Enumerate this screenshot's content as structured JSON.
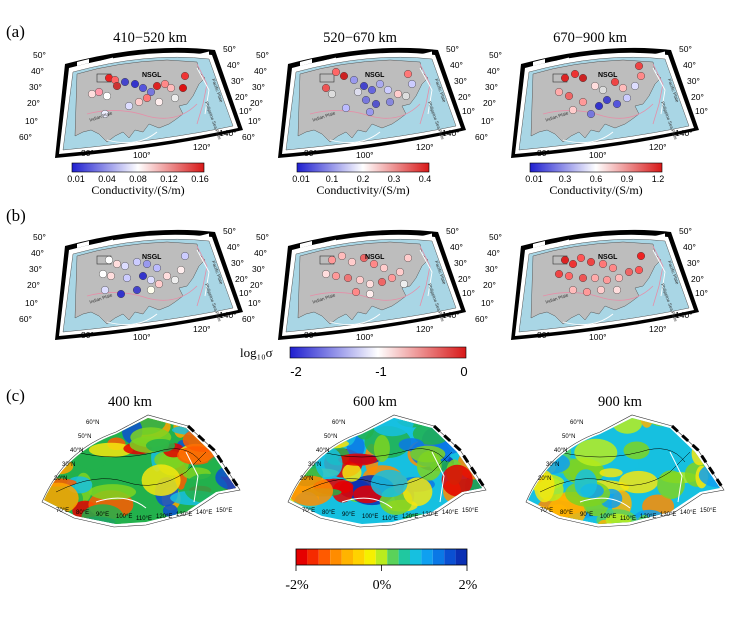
{
  "row_labels": {
    "a": "(a)",
    "b": "(b)",
    "c": "(c)"
  },
  "row_a": {
    "panels": [
      {
        "title": "410−520 km",
        "cbar_label": "Conductivity/(S/m)",
        "ticks": [
          "0.01",
          "0.04",
          "0.08",
          "0.12",
          "0.16"
        ]
      },
      {
        "title": "520−670 km",
        "cbar_label": "Conductivity/(S/m)",
        "ticks": [
          "0.01",
          "0.1",
          "0.2",
          "0.3",
          "0.4"
        ]
      },
      {
        "title": "670−900 km",
        "cbar_label": "Conductivity/(S/m)",
        "ticks": [
          "0.01",
          "0.3",
          "0.6",
          "0.9",
          "1.2"
        ]
      }
    ]
  },
  "row_b": {
    "colorbar": {
      "label": "log₁₀σ",
      "ticks": [
        "-2",
        "-1",
        "0"
      ]
    }
  },
  "row_c": {
    "panels": [
      {
        "title": "400 km"
      },
      {
        "title": "600 km"
      },
      {
        "title": "900 km"
      }
    ],
    "colorbar": {
      "ticks": [
        "-2%",
        "0%",
        "2%"
      ]
    },
    "lat_labels": [
      "60°N",
      "50°N",
      "40°N",
      "30°N",
      "20°N"
    ],
    "lon_labels": [
      "70°E",
      "80°E",
      "90°E",
      "100°E",
      "110°E",
      "120°E",
      "130°E",
      "140°E",
      "150°E"
    ]
  },
  "map_labels": {
    "nsgl": "NSGL",
    "lat": [
      "50°",
      "40°",
      "30°",
      "20°",
      "10°",
      "60°"
    ],
    "lat_right": [
      "50°",
      "40°",
      "30°",
      "20°",
      "10°"
    ],
    "lon_bottom": [
      "80°",
      "100°",
      "120°",
      "140°"
    ],
    "plates": [
      "Indian Plate",
      "Pacific Plate",
      "Philippine Sea Plate"
    ]
  },
  "colors": {
    "sea": "#a9d6e5",
    "land": "#bdbdbd",
    "blue": "#2b2bd6",
    "red": "#e02020"
  }
}
